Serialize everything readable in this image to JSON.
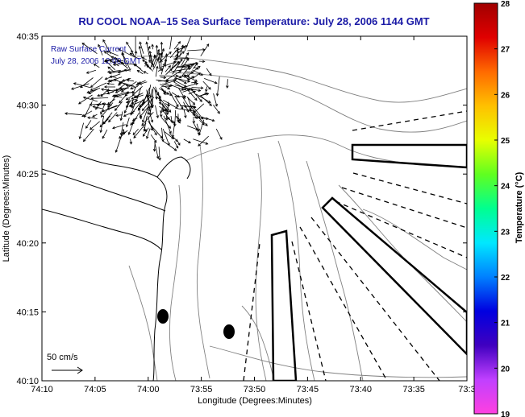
{
  "title": "RU COOL  NOAA–15  Sea Surface Temperature:  July 28, 2006 1144 GMT",
  "inset": {
    "line1": "Raw Surface Current",
    "line2": "July 28, 2006 12:00 GMT"
  },
  "scale": {
    "label": "50 cm/s"
  },
  "x_axis": {
    "label": "Longitude (Degrees:Minutes)",
    "ticks": [
      "74:10",
      "74:05",
      "74:00",
      "73:55",
      "73:50",
      "73:45",
      "73:40",
      "73:35",
      "73:3"
    ]
  },
  "y_axis": {
    "label": "Latitude (Degrees:Minutes)",
    "ticks": [
      "40:35",
      "40:30",
      "40:25",
      "40:20",
      "40:15",
      "40:10"
    ]
  },
  "colorbar": {
    "label": "Temperature (°C)",
    "ticks": [
      "28",
      "27",
      "26",
      "25",
      "24",
      "23",
      "22",
      "21",
      "20",
      "19"
    ],
    "colors": [
      "#a00000",
      "#e00000",
      "#ff6a00",
      "#ffc000",
      "#e8ff00",
      "#60ff20",
      "#00ff90",
      "#00e8ff",
      "#0080ff",
      "#0000e0",
      "#4000c0",
      "#c040ff",
      "#ff40e0"
    ]
  },
  "map_colors": {
    "vectors": "#000000",
    "contours": "#808080",
    "coast": "#000000"
  }
}
